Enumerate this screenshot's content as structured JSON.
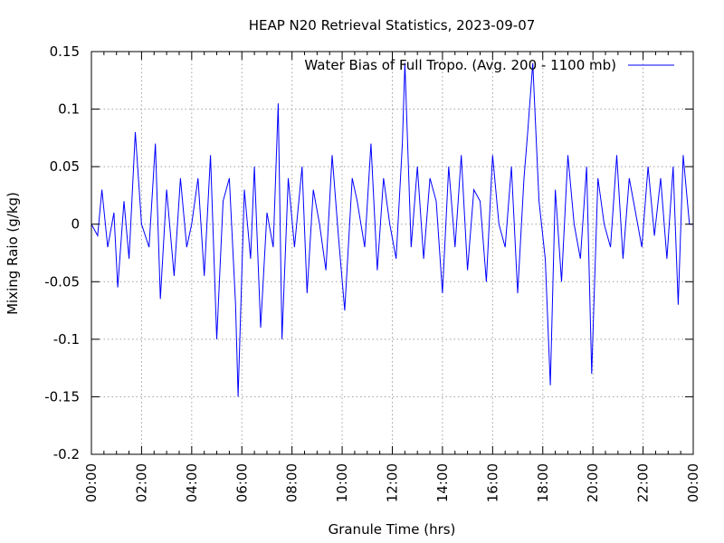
{
  "chart_data": {
    "type": "line",
    "title": "HEAP N20 Retrieval Statistics, 2023-09-07",
    "xlabel": "Granule Time (hrs)",
    "ylabel": "Mixing Raio (g/kg)",
    "xlim": [
      "00:00",
      "24:00"
    ],
    "ylim": [
      -0.2,
      0.15
    ],
    "grid": true,
    "legend_position": "top-right",
    "x_ticks": [
      "00:00",
      "02:00",
      "04:00",
      "06:00",
      "08:00",
      "10:00",
      "12:00",
      "14:00",
      "16:00",
      "18:00",
      "20:00",
      "22:00",
      "00:00"
    ],
    "y_ticks": [
      "0.15",
      "0.1",
      "0.05",
      "0",
      "-0.05",
      "-0.1",
      "-0.15",
      "-0.2"
    ],
    "series": [
      {
        "name": "Water Bias of Full Tropo. (Avg. 200 - 1100 mb)",
        "color": "#0000ff",
        "x_hours": [
          0.0,
          0.25,
          0.42,
          0.65,
          0.9,
          1.05,
          1.3,
          1.5,
          1.75,
          2.0,
          2.3,
          2.55,
          2.75,
          3.0,
          3.3,
          3.55,
          3.8,
          4.0,
          4.25,
          4.5,
          4.75,
          5.0,
          5.25,
          5.5,
          5.75,
          5.85,
          6.1,
          6.35,
          6.5,
          6.75,
          7.0,
          7.25,
          7.45,
          7.6,
          7.85,
          8.1,
          8.4,
          8.6,
          8.85,
          9.1,
          9.35,
          9.6,
          9.85,
          10.1,
          10.4,
          10.6,
          10.9,
          11.15,
          11.4,
          11.65,
          11.9,
          12.15,
          12.4,
          12.5,
          12.75,
          13.0,
          13.25,
          13.5,
          13.75,
          14.0,
          14.25,
          14.5,
          14.75,
          15.0,
          15.25,
          15.5,
          15.75,
          16.0,
          16.25,
          16.5,
          16.75,
          17.0,
          17.25,
          17.4,
          17.6,
          17.85,
          18.1,
          18.3,
          18.5,
          18.75,
          19.0,
          19.25,
          19.5,
          19.75,
          19.95,
          20.2,
          20.45,
          20.7,
          20.95,
          21.2,
          21.45,
          21.7,
          21.95,
          22.2,
          22.45,
          22.7,
          22.95,
          23.2,
          23.4,
          23.6,
          23.85,
          24.0
        ],
        "values": [
          0.0,
          -0.01,
          0.03,
          -0.02,
          0.01,
          -0.055,
          0.02,
          -0.03,
          0.08,
          0.0,
          -0.02,
          0.07,
          -0.065,
          0.03,
          -0.045,
          0.04,
          -0.02,
          0.0,
          0.04,
          -0.045,
          0.06,
          -0.1,
          0.02,
          0.04,
          -0.07,
          -0.15,
          0.03,
          -0.03,
          0.05,
          -0.09,
          0.01,
          -0.02,
          0.105,
          -0.1,
          0.04,
          -0.02,
          0.05,
          -0.06,
          0.03,
          0.0,
          -0.04,
          0.06,
          -0.01,
          -0.075,
          0.04,
          0.02,
          -0.02,
          0.07,
          -0.04,
          0.04,
          0.0,
          -0.03,
          0.07,
          0.14,
          -0.02,
          0.05,
          -0.03,
          0.04,
          0.02,
          -0.06,
          0.05,
          -0.02,
          0.06,
          -0.04,
          0.03,
          0.02,
          -0.05,
          0.06,
          0.0,
          -0.02,
          0.05,
          -0.06,
          0.04,
          0.08,
          0.14,
          0.02,
          -0.03,
          -0.14,
          0.03,
          -0.05,
          0.06,
          0.0,
          -0.03,
          0.05,
          -0.13,
          0.04,
          0.0,
          -0.02,
          0.06,
          -0.03,
          0.04,
          0.01,
          -0.02,
          0.05,
          -0.01,
          0.04,
          -0.03,
          0.05,
          -0.07,
          0.06,
          0.0,
          0.0
        ]
      }
    ]
  }
}
